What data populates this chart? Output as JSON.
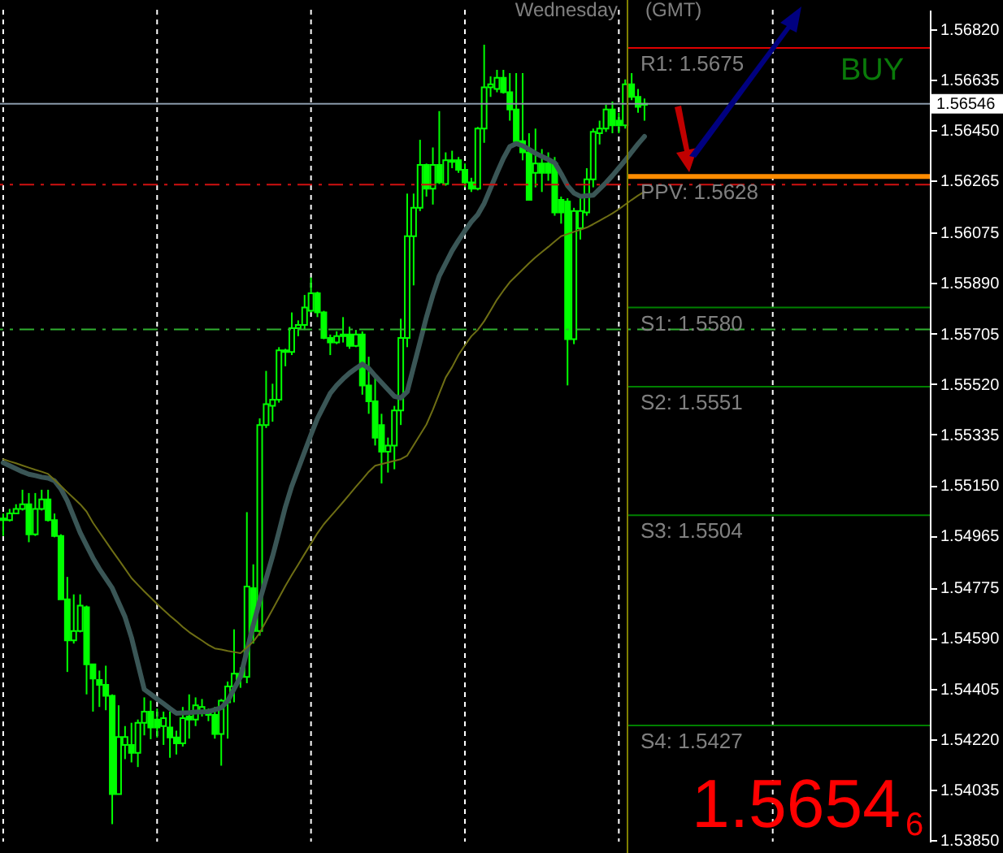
{
  "chart_data": {
    "type": "candlestick",
    "color": "#00ff00",
    "categories": [
      null,
      null,
      null,
      null,
      null,
      null,
      null,
      null,
      null,
      null,
      null,
      null,
      null,
      null,
      null,
      null,
      null,
      null,
      null,
      null,
      null,
      null,
      null,
      null,
      null,
      null,
      null,
      null,
      null,
      null,
      null,
      null,
      null,
      null,
      null,
      null,
      null,
      null,
      null,
      null,
      null,
      null,
      null,
      null,
      null,
      null,
      null,
      null,
      null,
      null,
      null,
      null,
      null,
      null,
      null,
      null,
      null,
      null,
      null,
      null,
      null,
      null,
      null,
      null,
      null,
      null,
      null,
      null,
      null,
      null,
      null,
      null,
      null,
      null,
      null,
      null,
      null,
      null,
      null,
      null,
      null,
      null,
      null,
      null,
      null,
      null,
      null,
      null,
      null,
      null,
      null,
      null,
      null,
      null,
      null,
      null,
      null,
      null,
      null,
      null,
      null,
      null,
      null,
      null,
      null,
      null,
      null,
      null,
      null,
      null,
      null,
      null,
      null,
      null,
      null,
      null,
      null,
      null,
      null,
      null,
      null,
      null,
      null,
      null,
      null,
      null,
      null,
      null,
      null,
      null,
      null,
      null,
      null,
      null,
      null,
      null,
      null,
      null,
      null,
      null,
      null,
      null,
      null,
      null,
      null
    ],
    "ohlc": [
      [
        1.55022,
        1.55046,
        1.54964,
        1.55028
      ],
      [
        1.55022,
        1.55063,
        1.55017,
        1.55046
      ],
      [
        1.55046,
        1.5508,
        1.55046,
        1.55063
      ],
      [
        1.55063,
        1.55133,
        1.55057,
        1.5508
      ],
      [
        1.5508,
        1.55121,
        1.54941,
        1.5497
      ],
      [
        1.5497,
        1.55121,
        1.54964,
        1.55063
      ],
      [
        1.55063,
        1.55133,
        1.55057,
        1.55098
      ],
      [
        1.55098,
        1.55133,
        1.55017,
        1.55022
      ],
      [
        1.55022,
        1.55046,
        1.54959,
        1.54964
      ],
      [
        1.54964,
        1.5497,
        1.54732,
        1.54732
      ],
      [
        1.54732,
        1.54814,
        1.54466,
        1.54582
      ],
      [
        1.54582,
        1.5475,
        1.5457,
        1.54616
      ],
      [
        1.54616,
        1.5475,
        1.54611,
        1.54709
      ],
      [
        1.54703,
        1.54709,
        1.54384,
        1.54494
      ],
      [
        1.54494,
        1.54494,
        1.54321,
        1.54442
      ],
      [
        1.54437,
        1.54471,
        1.54338,
        1.54419
      ],
      [
        1.54419,
        1.54489,
        1.54326,
        1.54379
      ],
      [
        1.54379,
        1.54384,
        1.53909,
        1.54019
      ],
      [
        1.54019,
        1.54344,
        1.54019,
        1.54228
      ],
      [
        1.54199,
        1.54268,
        1.54147,
        1.54228
      ],
      [
        1.54199,
        1.5428,
        1.54135,
        1.5417
      ],
      [
        1.5417,
        1.54292,
        1.54118,
        1.5428
      ],
      [
        1.5428,
        1.54373,
        1.54234,
        1.54321
      ],
      [
        1.54321,
        1.54361,
        1.5422,
        1.54263
      ],
      [
        1.54292,
        1.54332,
        1.54226,
        1.54263
      ],
      [
        1.54268,
        1.54321,
        1.54199,
        1.54297
      ],
      [
        1.54263,
        1.54321,
        1.54152,
        1.54226
      ],
      [
        1.54226,
        1.54251,
        1.54164,
        1.54205
      ],
      [
        1.54205,
        1.54338,
        1.54193,
        1.54297
      ],
      [
        1.54303,
        1.54384,
        1.54222,
        1.54292
      ],
      [
        1.54292,
        1.54373,
        1.54268,
        1.54344
      ],
      [
        1.54321,
        1.54367,
        1.54303,
        1.54338
      ],
      [
        1.54326,
        1.54332,
        1.54286,
        1.54309
      ],
      [
        1.54309,
        1.54338,
        1.54222,
        1.54239
      ],
      [
        1.54239,
        1.54367,
        1.54123,
        1.54361
      ],
      [
        1.54355,
        1.54431,
        1.54222,
        1.54413
      ],
      [
        1.54413,
        1.54622,
        1.54355,
        1.5446
      ],
      [
        1.5446,
        1.54483,
        1.54408,
        1.54448
      ],
      [
        1.54448,
        1.55051,
        1.54425,
        1.54779
      ],
      [
        1.54773,
        1.5486,
        1.5457,
        1.54616
      ],
      [
        1.54616,
        1.55394,
        1.54599,
        1.5537
      ],
      [
        1.5537,
        1.55568,
        1.55359,
        1.55446
      ],
      [
        1.5544,
        1.55521,
        1.55382,
        1.55463
      ],
      [
        1.55463,
        1.55655,
        1.55452,
        1.55643
      ],
      [
        1.55643,
        1.55649,
        1.55585,
        1.55637
      ],
      [
        1.55637,
        1.55782,
        1.55626,
        1.55724
      ],
      [
        1.55724,
        1.55753,
        1.55695,
        1.55736
      ],
      [
        1.55736,
        1.55846,
        1.55718,
        1.558
      ],
      [
        1.55788,
        1.5591,
        1.55782,
        1.55852
      ],
      [
        1.55852,
        1.55858,
        1.55765,
        1.55782
      ],
      [
        1.55782,
        1.55788,
        1.55684,
        1.55689
      ],
      [
        1.55689,
        1.55701,
        1.55626,
        1.55672
      ],
      [
        1.55672,
        1.55713,
        1.55666,
        1.55695
      ],
      [
        1.55695,
        1.55765,
        1.55672,
        1.55701
      ],
      [
        1.55701,
        1.5573,
        1.55649,
        1.5566
      ],
      [
        1.5566,
        1.55718,
        1.55655,
        1.55701
      ],
      [
        1.55701,
        1.55713,
        1.55481,
        1.55515
      ],
      [
        1.55515,
        1.5562,
        1.55411,
        1.55457
      ],
      [
        1.55457,
        1.55556,
        1.55295,
        1.55324
      ],
      [
        1.5537,
        1.55411,
        1.55156,
        1.55272
      ],
      [
        1.55272,
        1.55324,
        1.55196,
        1.55295
      ],
      [
        1.55295,
        1.5544,
        1.55208,
        1.55423
      ],
      [
        1.55423,
        1.55759,
        1.5537,
        1.55689
      ],
      [
        1.55689,
        1.56217,
        1.55655,
        1.56061
      ],
      [
        1.56061,
        1.56217,
        1.55881,
        1.56165
      ],
      [
        1.56165,
        1.56414,
        1.56153,
        1.56322
      ],
      [
        1.56322,
        1.56327,
        1.56206,
        1.56235
      ],
      [
        1.56235,
        1.56386,
        1.56177,
        1.56322
      ],
      [
        1.56322,
        1.56519,
        1.56252,
        1.56258
      ],
      [
        1.56252,
        1.56368,
        1.56246,
        1.56339
      ],
      [
        1.56333,
        1.56374,
        1.5631,
        1.56339
      ],
      [
        1.56339,
        1.56351,
        1.56293,
        1.56304
      ],
      [
        1.56304,
        1.56327,
        1.5624,
        1.56258
      ],
      [
        1.56258,
        1.56275,
        1.56223,
        1.56235
      ],
      [
        1.56235,
        1.56461,
        1.56229,
        1.56455
      ],
      [
        1.56455,
        1.56762,
        1.56403,
        1.56606
      ],
      [
        1.56606,
        1.56646,
        1.56571,
        1.56617
      ],
      [
        1.566,
        1.5667,
        1.56588,
        1.56641
      ],
      [
        1.56641,
        1.5667,
        1.56583,
        1.56588
      ],
      [
        1.56588,
        1.56658,
        1.56484,
        1.56525
      ],
      [
        1.56525,
        1.56658,
        1.56403,
        1.56409
      ],
      [
        1.56409,
        1.56658,
        1.56339,
        1.56368
      ],
      [
        1.56368,
        1.56438,
        1.56194,
        1.56194
      ],
      [
        1.56293,
        1.56455,
        1.5624,
        1.56327
      ],
      [
        1.56327,
        1.5638,
        1.56223,
        1.56293
      ],
      [
        1.56327,
        1.56368,
        1.56264,
        1.56293
      ],
      [
        1.56327,
        1.56351,
        1.56136,
        1.56148
      ],
      [
        1.56194,
        1.56206,
        1.56107,
        1.56148
      ],
      [
        1.56188,
        1.562,
        1.55515,
        1.55684
      ],
      [
        1.55684,
        1.56165,
        1.55666,
        1.56153
      ],
      [
        1.5609,
        1.56206,
        1.56049,
        1.56153
      ],
      [
        1.56148,
        1.5631,
        1.56136,
        1.56269
      ],
      [
        1.56269,
        1.56455,
        1.5624,
        1.56443
      ],
      [
        1.56438,
        1.56484,
        1.56397,
        1.56455
      ],
      [
        1.56455,
        1.56542,
        1.56443,
        1.56525
      ],
      [
        1.56525,
        1.56554,
        1.56438,
        1.56467
      ],
      [
        1.56484,
        1.56513,
        1.56438,
        1.56467
      ],
      [
        1.56467,
        1.56635,
        1.56455,
        1.56617
      ],
      [
        1.56617,
        1.56658,
        1.56559,
        1.56571
      ],
      [
        1.56571,
        1.566,
        1.56513,
        1.56535
      ],
      [
        1.56542,
        1.56565,
        1.56484,
        1.56546
      ],
      null,
      null,
      null,
      null,
      null,
      null,
      null,
      null,
      null,
      null,
      null,
      null,
      null,
      null,
      null,
      null,
      null,
      null,
      null,
      null,
      null,
      null,
      null,
      null,
      null,
      null,
      null,
      null,
      null,
      null,
      null,
      null,
      null,
      null,
      null,
      null,
      null,
      null,
      null,
      null,
      null,
      null,
      null,
      null
    ],
    "series": [
      {
        "type": "line",
        "color": "#3a5656",
        "values": [
          1.55232,
          1.55221,
          1.5521,
          1.55199,
          1.5519,
          1.55185,
          1.55179,
          1.55176,
          1.55166,
          1.55136,
          1.55092,
          1.55034,
          1.54976,
          1.54929,
          1.54883,
          1.54843,
          1.54808,
          1.54773,
          1.5472,
          1.54667,
          1.54592,
          1.54497,
          1.54402,
          1.54385,
          1.54367,
          1.5435,
          1.54332,
          1.54315,
          1.54316,
          1.54317,
          1.54319,
          1.5432,
          1.54321,
          1.54328,
          1.54335,
          1.5436,
          1.54404,
          1.54448,
          1.54543,
          1.54638,
          1.54727,
          1.54808,
          1.54889,
          1.54979,
          1.5507,
          1.55146,
          1.55209,
          1.55272,
          1.55335,
          1.55394,
          1.5544,
          1.55486,
          1.55515,
          1.55539,
          1.5556,
          1.55577,
          1.55593,
          1.55577,
          1.5555,
          1.55525,
          1.555,
          1.55475,
          1.55469,
          1.55492,
          1.55583,
          1.55674,
          1.55765,
          1.55846,
          1.55916,
          1.55962,
          1.56008,
          1.56046,
          1.56081,
          1.56114,
          1.5614,
          1.56181,
          1.56237,
          1.56293,
          1.56346,
          1.56389,
          1.564,
          1.56392,
          1.56379,
          1.56365,
          1.56353,
          1.56342,
          1.5633,
          1.5629,
          1.56246,
          1.56219,
          1.56207,
          1.56209,
          1.56211,
          1.56234,
          1.56257,
          1.56283,
          1.56311,
          1.56339,
          1.56369,
          1.56399,
          1.56426,
          null,
          null,
          null,
          null,
          null,
          null,
          null,
          null,
          null,
          null,
          null,
          null,
          null,
          null,
          null,
          null,
          null,
          null,
          null,
          null,
          null,
          null,
          null,
          null,
          null,
          null,
          null,
          null,
          null,
          null,
          null,
          null,
          null,
          null,
          null,
          null,
          null,
          null,
          null,
          null,
          null,
          null,
          null,
          null
        ]
      },
      {
        "type": "line",
        "color": "#6e6e14",
        "values": [
          1.55245,
          1.55237,
          1.5523,
          1.55222,
          1.55214,
          1.55206,
          1.55199,
          1.55191,
          1.55169,
          1.55147,
          1.55124,
          1.55102,
          1.5508,
          1.55053,
          1.55012,
          1.54978,
          1.54944,
          1.5491,
          1.54877,
          1.54844,
          1.5481,
          1.54785,
          1.54761,
          1.54738,
          1.54715,
          1.54693,
          1.54672,
          1.54652,
          1.54631,
          1.54612,
          1.54596,
          1.54581,
          1.54565,
          1.54552,
          1.54548,
          1.54543,
          1.54539,
          1.54535,
          1.54556,
          1.54577,
          1.54609,
          1.54652,
          1.54695,
          1.54738,
          1.54781,
          1.54821,
          1.54859,
          1.54898,
          1.54936,
          1.54974,
          1.55007,
          1.55034,
          1.55061,
          1.55088,
          1.55116,
          1.55144,
          1.55171,
          1.55199,
          1.55221,
          1.55227,
          1.55233,
          1.55239,
          1.55245,
          1.55258,
          1.55296,
          1.55334,
          1.55372,
          1.55426,
          1.55485,
          1.55544,
          1.55582,
          1.55627,
          1.55662,
          1.55695,
          1.55718,
          1.5575,
          1.55789,
          1.55829,
          1.55862,
          1.55893,
          1.55916,
          1.55939,
          1.55962,
          1.55984,
          1.56003,
          1.56022,
          1.56042,
          1.56061,
          1.56069,
          1.56077,
          1.56085,
          1.56093,
          1.56105,
          1.56118,
          1.56131,
          1.56145,
          1.5616,
          1.56177,
          1.56194,
          1.5621,
          1.56224,
          null,
          null,
          null,
          null,
          null,
          null,
          null,
          null,
          null,
          null,
          null,
          null,
          null,
          null,
          null,
          null,
          null,
          null,
          null,
          null,
          null,
          null,
          null,
          null,
          null,
          null,
          null,
          null,
          null,
          null,
          null,
          null,
          null,
          null,
          null,
          null,
          null,
          null,
          null,
          null,
          null,
          null,
          null,
          null
        ]
      }
    ],
    "ylim": [
      1.53845,
      1.5689
    ],
    "yticks": [
      {
        "value": 1.5682,
        "label": "1.56820"
      },
      1.56635,
      {
        "value": 1.5645,
        "label": "1.56450"
      },
      1.56265,
      1.56075,
      {
        "value": 1.5589,
        "label": "1.55890"
      },
      1.55705,
      {
        "value": 1.5552,
        "label": "1.55520"
      },
      1.55335,
      {
        "value": 1.5515,
        "label": "1.55150"
      },
      1.54965,
      1.54775,
      {
        "value": 1.5459,
        "label": "1.54590"
      },
      1.54405,
      {
        "value": 1.5422,
        "label": "1.54220"
      },
      1.54035,
      {
        "value": 1.5385,
        "label": "1.53850"
      }
    ],
    "grid": "x",
    "tick_labels": "y",
    "ref_lines": [
      {
        "axis": "y",
        "value": 1.56546,
        "label": "1.56546",
        "color": "#8a9aaa",
        "line_style": "solid"
      },
      {
        "axis": "y",
        "value": 1.5625,
        "color": "#d01010",
        "line_style": "dashed"
      },
      {
        "axis": "y",
        "value": 1.5572,
        "color": "#30b030",
        "line_style": "dashed"
      },
      {
        "axis": "y",
        "value": 1.5675,
        "label": "R1:  1.5675",
        "color": "#e00000",
        "line_style": "solid"
      },
      {
        "axis": "y",
        "value": 1.5628,
        "label": "PPV:  1.5628",
        "color": "#ff8c00",
        "line_style": "solid"
      },
      {
        "axis": "y",
        "value": 1.558,
        "label": "S1:  1.5580",
        "color": "#008000",
        "line_style": "solid"
      },
      {
        "axis": "y",
        "value": 1.5551,
        "label": "S2:  1.5551",
        "color": "#008000",
        "line_style": "solid"
      },
      {
        "axis": "y",
        "value": 1.5504,
        "label": "S3:  1.5504",
        "color": "#008000",
        "line_style": "solid"
      },
      {
        "axis": "y",
        "value": 1.5427,
        "label": "S4:  1.5427",
        "color": "#008000",
        "line_style": "solid"
      }
    ],
    "annotations": [
      "Wednesday",
      "(GMT)",
      "BUY",
      "1.5654",
      "6"
    ]
  }
}
